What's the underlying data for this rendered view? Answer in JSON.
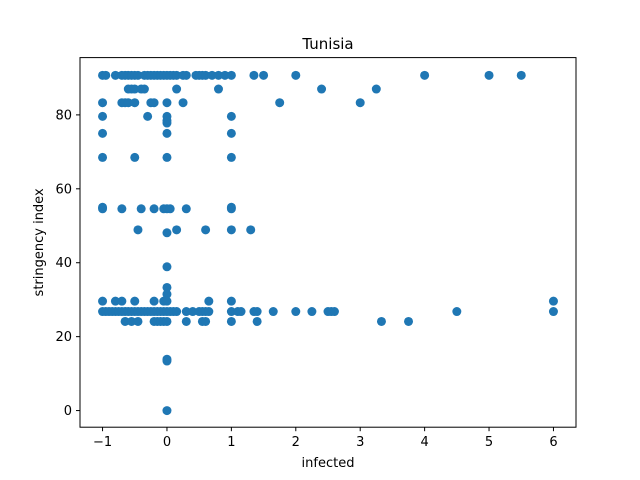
{
  "chart_data": {
    "type": "scatter",
    "title": "Tunisia",
    "xlabel": "infected",
    "ylabel": "stringency index",
    "xlim": [
      -1.35,
      6.35
    ],
    "ylim": [
      -4.5,
      95.5
    ],
    "xticks": [
      -1,
      0,
      1,
      2,
      3,
      4,
      5,
      6
    ],
    "yticks": [
      0,
      20,
      40,
      60,
      80
    ],
    "grid": false,
    "legend": "none",
    "marker_color": "#1f77b4",
    "points": [
      [
        -1,
        90.7
      ],
      [
        -0.95,
        90.7
      ],
      [
        -0.8,
        90.7
      ],
      [
        -0.7,
        90.7
      ],
      [
        -0.65,
        90.7
      ],
      [
        -0.6,
        90.7
      ],
      [
        -0.55,
        90.7
      ],
      [
        -0.5,
        90.7
      ],
      [
        -0.45,
        90.7
      ],
      [
        -0.35,
        90.7
      ],
      [
        -0.3,
        90.7
      ],
      [
        -0.25,
        90.7
      ],
      [
        -0.2,
        90.7
      ],
      [
        -0.15,
        90.7
      ],
      [
        -0.1,
        90.7
      ],
      [
        -0.05,
        90.7
      ],
      [
        0,
        90.7
      ],
      [
        0.05,
        90.7
      ],
      [
        0.1,
        90.7
      ],
      [
        0.15,
        90.7
      ],
      [
        0.25,
        90.7
      ],
      [
        0.3,
        90.7
      ],
      [
        0.45,
        90.7
      ],
      [
        0.5,
        90.7
      ],
      [
        0.55,
        90.7
      ],
      [
        0.6,
        90.7
      ],
      [
        0.7,
        90.7
      ],
      [
        0.8,
        90.7
      ],
      [
        0.9,
        90.7
      ],
      [
        1,
        90.7
      ],
      [
        1.35,
        90.7
      ],
      [
        1.5,
        90.7
      ],
      [
        2,
        90.7
      ],
      [
        4,
        90.7
      ],
      [
        5,
        90.7
      ],
      [
        5.5,
        90.7
      ],
      [
        -0.6,
        87
      ],
      [
        -0.55,
        87
      ],
      [
        -0.5,
        87
      ],
      [
        -0.4,
        87
      ],
      [
        -0.35,
        87
      ],
      [
        0.15,
        87
      ],
      [
        0.8,
        87
      ],
      [
        2.4,
        87
      ],
      [
        3.25,
        87
      ],
      [
        -1,
        83.3
      ],
      [
        -0.7,
        83.3
      ],
      [
        -0.65,
        83.3
      ],
      [
        -0.6,
        83.3
      ],
      [
        -0.5,
        83.3
      ],
      [
        -0.25,
        83.3
      ],
      [
        -0.2,
        83.3
      ],
      [
        0,
        83.3
      ],
      [
        0.25,
        83.3
      ],
      [
        1.75,
        83.3
      ],
      [
        3,
        83.3
      ],
      [
        -1,
        79.6
      ],
      [
        -0.3,
        79.6
      ],
      [
        0,
        79.6
      ],
      [
        1,
        79.6
      ],
      [
        0,
        77.8
      ],
      [
        0,
        78.5
      ],
      [
        -1,
        75
      ],
      [
        0,
        75
      ],
      [
        1,
        75
      ],
      [
        -1,
        68.5
      ],
      [
        -0.5,
        68.5
      ],
      [
        0,
        68.5
      ],
      [
        1,
        68.5
      ],
      [
        -1,
        55
      ],
      [
        -1,
        54.6
      ],
      [
        -0.7,
        54.6
      ],
      [
        -0.4,
        54.6
      ],
      [
        -0.2,
        54.6
      ],
      [
        -0.05,
        54.6
      ],
      [
        0,
        54.6
      ],
      [
        0.05,
        54.6
      ],
      [
        0.3,
        54.6
      ],
      [
        1,
        55
      ],
      [
        1,
        54.6
      ],
      [
        -0.45,
        48.9
      ],
      [
        0,
        48.1
      ],
      [
        0.15,
        48.9
      ],
      [
        0.6,
        48.9
      ],
      [
        1,
        48.9
      ],
      [
        1.3,
        48.9
      ],
      [
        0,
        38.9
      ],
      [
        0,
        33.3
      ],
      [
        0,
        31.5
      ],
      [
        -1,
        29.6
      ],
      [
        -0.8,
        29.6
      ],
      [
        -0.7,
        29.6
      ],
      [
        -0.5,
        29.6
      ],
      [
        -0.2,
        29.6
      ],
      [
        -0.05,
        29.6
      ],
      [
        0,
        29.6
      ],
      [
        0.65,
        29.6
      ],
      [
        1,
        29.6
      ],
      [
        6,
        29.6
      ],
      [
        -1,
        26.8
      ],
      [
        -0.95,
        26.8
      ],
      [
        -0.9,
        26.8
      ],
      [
        -0.85,
        26.8
      ],
      [
        -0.8,
        26.8
      ],
      [
        -0.75,
        26.8
      ],
      [
        -0.7,
        26.8
      ],
      [
        -0.65,
        26.8
      ],
      [
        -0.6,
        26.8
      ],
      [
        -0.55,
        26.8
      ],
      [
        -0.5,
        26.8
      ],
      [
        -0.45,
        26.8
      ],
      [
        -0.4,
        26.8
      ],
      [
        -0.35,
        26.8
      ],
      [
        -0.3,
        26.8
      ],
      [
        -0.25,
        26.8
      ],
      [
        -0.2,
        26.8
      ],
      [
        -0.15,
        26.8
      ],
      [
        -0.1,
        26.8
      ],
      [
        -0.05,
        26.8
      ],
      [
        0,
        26.8
      ],
      [
        0.05,
        26.8
      ],
      [
        0.1,
        26.8
      ],
      [
        0.15,
        26.8
      ],
      [
        0.3,
        26.8
      ],
      [
        0.4,
        26.8
      ],
      [
        0.5,
        26.8
      ],
      [
        0.55,
        26.8
      ],
      [
        0.6,
        26.8
      ],
      [
        0.65,
        26.8
      ],
      [
        1,
        26.8
      ],
      [
        1.1,
        26.8
      ],
      [
        1.15,
        26.8
      ],
      [
        1.35,
        26.8
      ],
      [
        1.4,
        26.8
      ],
      [
        1.65,
        26.8
      ],
      [
        2,
        26.8
      ],
      [
        2.25,
        26.8
      ],
      [
        2.5,
        26.8
      ],
      [
        2.55,
        26.8
      ],
      [
        2.6,
        26.8
      ],
      [
        4.5,
        26.8
      ],
      [
        6,
        26.8
      ],
      [
        -0.65,
        24.1
      ],
      [
        -0.55,
        24.1
      ],
      [
        -0.45,
        24.1
      ],
      [
        -0.2,
        24.1
      ],
      [
        -0.15,
        24.1
      ],
      [
        -0.1,
        24.1
      ],
      [
        -0.05,
        24.1
      ],
      [
        0,
        24.1
      ],
      [
        0.3,
        24.1
      ],
      [
        0.55,
        24.1
      ],
      [
        0.6,
        24.1
      ],
      [
        1,
        24.1
      ],
      [
        1.4,
        24.1
      ],
      [
        3.33,
        24.1
      ],
      [
        3.75,
        24.1
      ],
      [
        0,
        13.9
      ],
      [
        0,
        13.4
      ],
      [
        0,
        0
      ]
    ]
  }
}
